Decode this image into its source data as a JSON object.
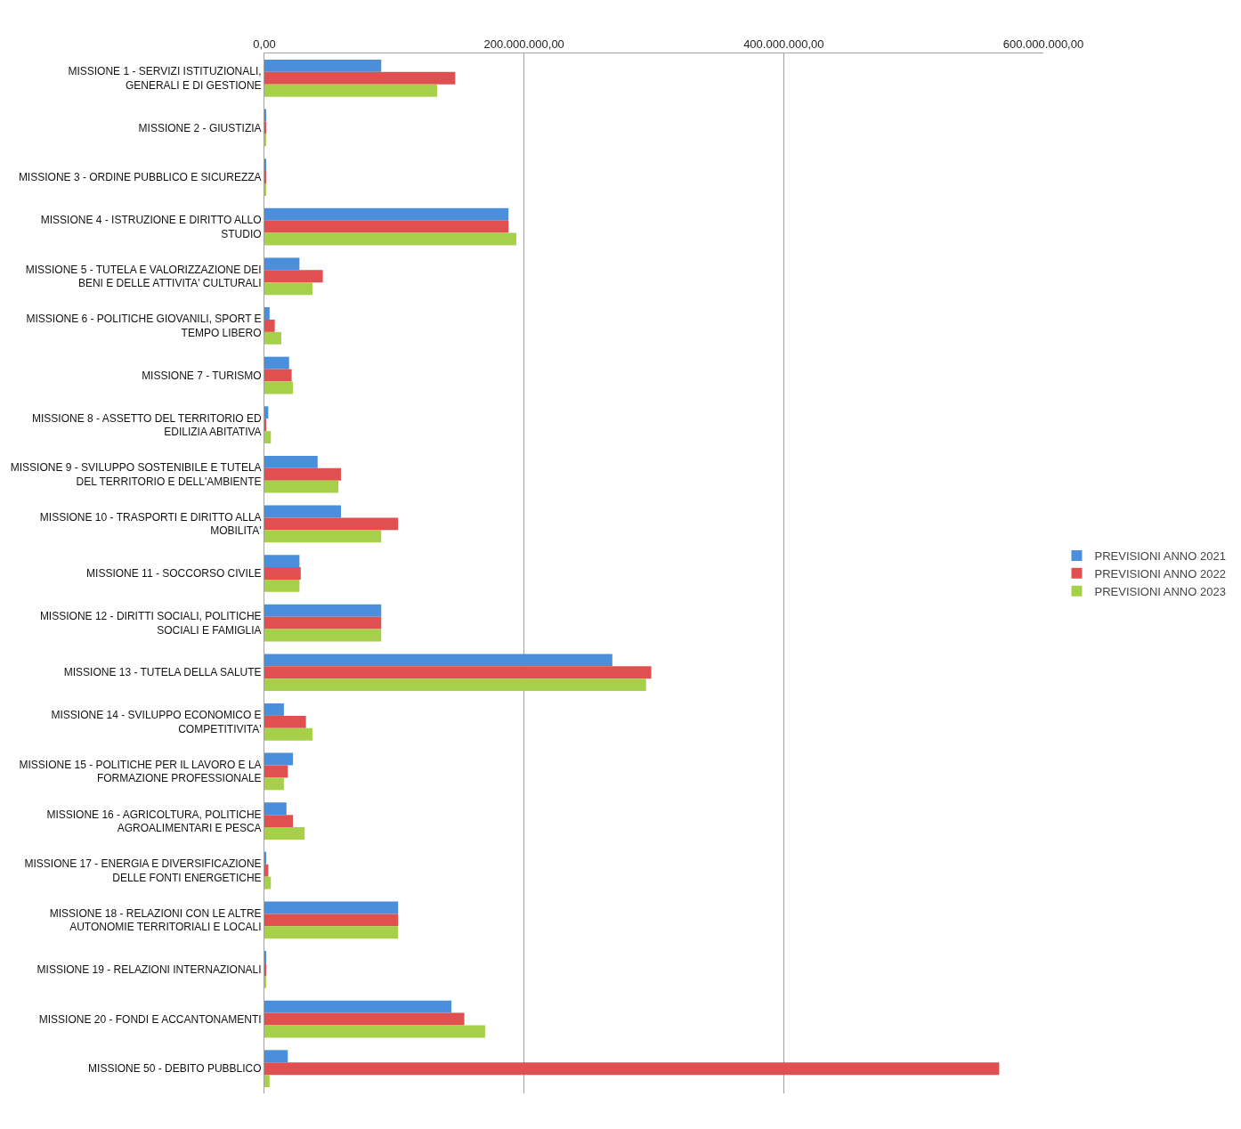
{
  "chart_data": {
    "type": "bar",
    "orientation": "horizontal",
    "categories": [
      "MISSIONE 1 - SERVIZI ISTITUZIONALI, GENERALI E DI GESTIONE",
      "MISSIONE 2 - GIUSTIZIA",
      "MISSIONE 3 - ORDINE PUBBLICO E SICUREZZA",
      "MISSIONE 4 - ISTRUZIONE E DIRITTO ALLO STUDIO",
      "MISSIONE 5 - TUTELA E VALORIZZAZIONE DEI BENI E DELLE ATTIVITA' CULTURALI",
      "MISSIONE 6 - POLITICHE GIOVANILI, SPORT E TEMPO LIBERO",
      "MISSIONE 7 - TURISMO",
      "MISSIONE 8 - ASSETTO DEL TERRITORIO ED EDILIZIA ABITATIVA",
      "MISSIONE 9 - SVILUPPO SOSTENIBILE E TUTELA DEL TERRITORIO E DELL'AMBIENTE",
      "MISSIONE 10 - TRASPORTI E DIRITTO ALLA MOBILITA'",
      "MISSIONE 11 - SOCCORSO CIVILE",
      "MISSIONE 12 - DIRITTI SOCIALI, POLITICHE SOCIALI E FAMIGLIA",
      "MISSIONE 13 - TUTELA DELLA SALUTE",
      "MISSIONE 14 - SVILUPPO ECONOMICO E COMPETITIVITA'",
      "MISSIONE 15 - POLITICHE PER IL LAVORO E LA FORMAZIONE PROFESSIONALE",
      "MISSIONE 16 - AGRICOLTURA, POLITICHE AGROALIMENTARI E PESCA",
      "MISSIONE 17 - ENERGIA E DIVERSIFICAZIONE DELLE FONTI ENERGETICHE",
      "MISSIONE 18 - RELAZIONI CON LE ALTRE AUTONOMIE TERRITORIALI E LOCALI",
      "MISSIONE 19 - RELAZIONI INTERNAZIONALI",
      "MISSIONE 20 - FONDI E ACCANTONAMENTI",
      "MISSIONE 50 - DEBITO PUBBLICO"
    ],
    "series": [
      {
        "name": "PREVISIONI ANNO 2021",
        "color": "#4a8fdc",
        "values": [
          90000000,
          1000000,
          1000000,
          188000000,
          27000000,
          4000000,
          19000000,
          3000000,
          41000000,
          59000000,
          27000000,
          90000000,
          268000000,
          15000000,
          22000000,
          17000000,
          1000000,
          103000000,
          1000000,
          144000000,
          18000000
        ]
      },
      {
        "name": "PREVISIONI ANNO 2022",
        "color": "#e05050",
        "values": [
          147000000,
          1000000,
          1000000,
          188000000,
          45000000,
          8000000,
          21000000,
          1000000,
          59000000,
          103000000,
          28000000,
          90000000,
          298000000,
          32000000,
          18000000,
          22000000,
          3000000,
          103000000,
          1000000,
          154000000,
          566000000
        ]
      },
      {
        "name": "PREVISIONI ANNO 2023",
        "color": "#a6d04a",
        "values": [
          133000000,
          1000000,
          1000000,
          194000000,
          37000000,
          13000000,
          22000000,
          5000000,
          57000000,
          90000000,
          27000000,
          90000000,
          294000000,
          37000000,
          15000000,
          31000000,
          5000000,
          103000000,
          1000000,
          170000000,
          4000000
        ]
      }
    ],
    "xlim": [
      0,
      600000000
    ],
    "xticks": [
      {
        "value": 0,
        "label": "0,00"
      },
      {
        "value": 200000000,
        "label": "200.000.000,00"
      },
      {
        "value": 400000000,
        "label": "400.000.000,00"
      },
      {
        "value": 600000000,
        "label": "600.000.000,00"
      }
    ],
    "grid": "x",
    "legend": "right"
  }
}
